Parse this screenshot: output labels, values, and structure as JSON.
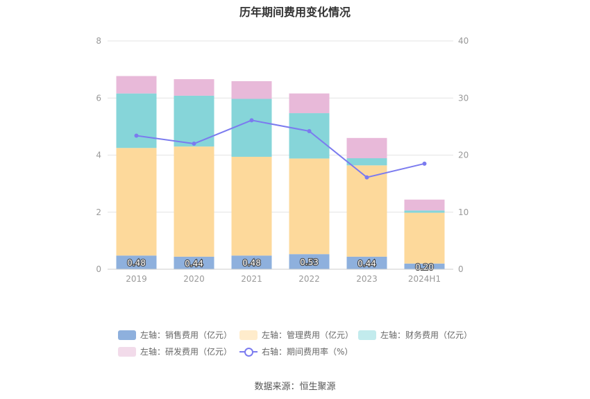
{
  "chart_data": {
    "type": "bar",
    "title": "历年期间费用变化情况",
    "categories": [
      "2019",
      "2020",
      "2021",
      "2022",
      "2023",
      "2024H1"
    ],
    "y_left": {
      "ticks": [
        "0",
        "2",
        "4",
        "6",
        "8"
      ],
      "ylim": [
        0,
        8
      ]
    },
    "y_right": {
      "ticks": [
        "0",
        "10",
        "20",
        "30",
        "40"
      ],
      "ylim": [
        0,
        40
      ]
    },
    "grid": true,
    "legend_position": "bottom",
    "series": [
      {
        "name": "左轴：销售费用（亿元）",
        "type": "bar",
        "axis": "left",
        "color": "#8eb0dd",
        "values": [
          0.48,
          0.44,
          0.48,
          0.53,
          0.44,
          0.2
        ],
        "labels": [
          "0.48",
          "0.44",
          "0.48",
          "0.53",
          "0.44",
          "0.20"
        ]
      },
      {
        "name": "左轴：管理费用（亿元）",
        "type": "bar",
        "axis": "left",
        "color": "#fdd99b",
        "values": [
          3.77,
          3.86,
          3.46,
          3.35,
          3.2,
          1.78
        ]
      },
      {
        "name": "左轴：财务费用（亿元）",
        "type": "bar",
        "axis": "left",
        "color": "#86d5d9",
        "values": [
          1.91,
          1.78,
          2.03,
          1.59,
          0.25,
          0.08
        ]
      },
      {
        "name": "左轴：研发费用（亿元）",
        "type": "bar",
        "axis": "left",
        "color": "#e8b9d9",
        "values": [
          0.61,
          0.58,
          0.62,
          0.69,
          0.71,
          0.38
        ]
      },
      {
        "name": "右轴：期间费用率（%）",
        "type": "line",
        "axis": "right",
        "color": "#7b7bef",
        "values": [
          23.4,
          22.0,
          26.1,
          24.2,
          16.1,
          18.5
        ]
      }
    ],
    "legend_colors": [
      "#8eb0dd",
      "#ffeccc",
      "#c2ebed",
      "#f2dbea",
      "#7b7bef"
    ]
  },
  "source": "数据来源：恒生聚源"
}
